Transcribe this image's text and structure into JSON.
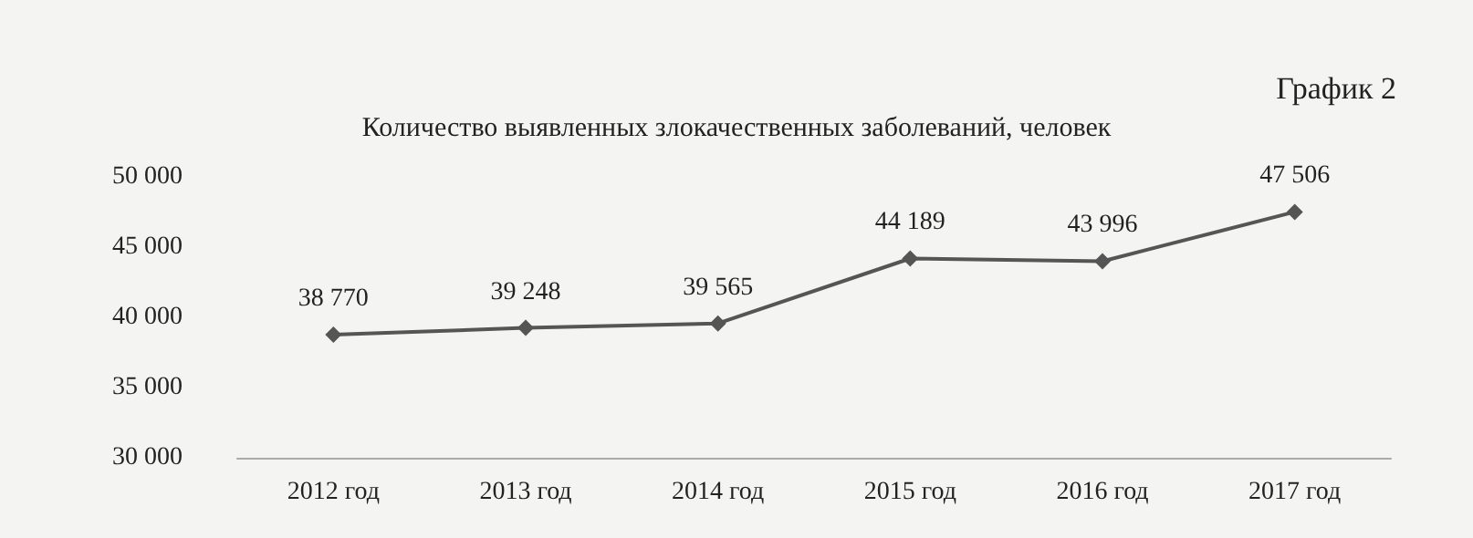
{
  "chart_data": {
    "type": "line",
    "title": "Количество выявленных злокачественных заболеваний, человек",
    "annotations": [
      "График 2"
    ],
    "categories": [
      "2012 год",
      "2013 год",
      "2014 год",
      "2015 год",
      "2016 год",
      "2017 год"
    ],
    "series": [
      {
        "color": "#555555",
        "values": [
          38770,
          39248,
          39565,
          44189,
          43996,
          47506
        ],
        "value_labels": [
          "38 770",
          "39 248",
          "39 565",
          "44 189",
          "43 996",
          "47 506"
        ]
      }
    ],
    "ylim": [
      30000,
      50000
    ],
    "yticks": [
      {
        "value": 30000,
        "label": "30 000"
      },
      {
        "value": 35000,
        "label": "35 000"
      },
      {
        "value": 40000,
        "label": "40 000"
      },
      {
        "value": 45000,
        "label": "45 000"
      },
      {
        "value": 50000,
        "label": "50 000"
      }
    ],
    "marker": "diamond",
    "line_style": "solid",
    "grid": false
  }
}
